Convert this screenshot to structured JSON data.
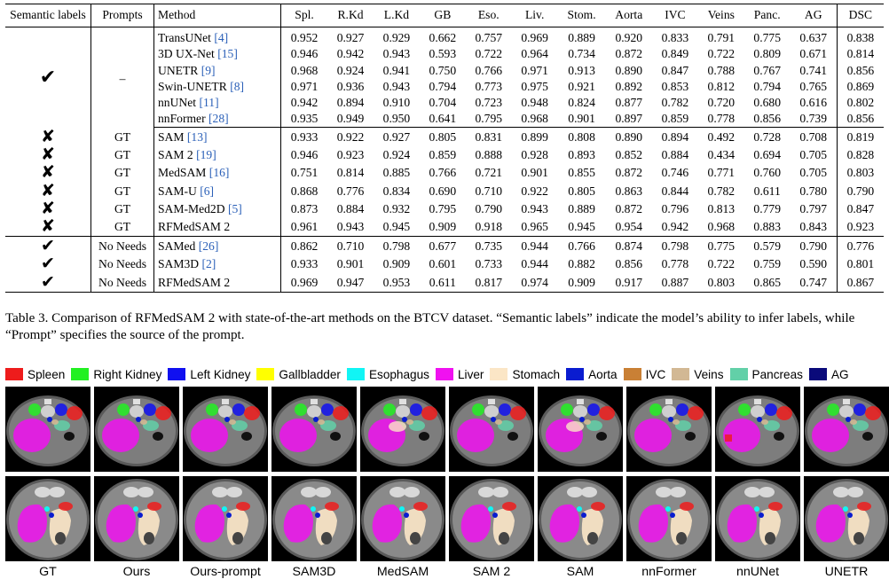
{
  "table": {
    "headers": [
      "Semantic labels",
      "Prompts",
      "Method",
      "Spl.",
      "R.Kd",
      "L.Kd",
      "GB",
      "Eso.",
      "Liv.",
      "Stom.",
      "Aorta",
      "IVC",
      "Veins",
      "Panc.",
      "AG",
      "DSC"
    ],
    "groups": [
      {
        "semantic": "✔",
        "prompt": "–",
        "rows": [
          {
            "method": "TransUNet",
            "ref": "[4]",
            "values": [
              "0.952",
              "0.927",
              "0.929",
              "0.662",
              "0.757",
              "0.969",
              "0.889",
              "0.920",
              "0.833",
              "0.791",
              "0.775",
              "0.637"
            ],
            "dsc": "0.838"
          },
          {
            "method": "3D UX-Net",
            "ref": "[15]",
            "values": [
              "0.946",
              "0.942",
              "0.943",
              "0.593",
              "0.722",
              "0.964",
              "0.734",
              "0.872",
              "0.849",
              "0.722",
              "0.809",
              "0.671"
            ],
            "dsc": "0.814"
          },
          {
            "method": "UNETR",
            "ref": "[9]",
            "values": [
              "0.968",
              "0.924",
              "0.941",
              "0.750",
              "0.766",
              "0.971",
              "0.913",
              "0.890",
              "0.847",
              "0.788",
              "0.767",
              "0.741"
            ],
            "dsc": "0.856"
          },
          {
            "method": "Swin-UNETR",
            "ref": "[8]",
            "values": [
              "0.971",
              "0.936",
              "0.943",
              "0.794",
              "0.773",
              "0.975",
              "0.921",
              "0.892",
              "0.853",
              "0.812",
              "0.794",
              "0.765"
            ],
            "dsc": "0.869"
          },
          {
            "method": "nnUNet",
            "ref": "[11]",
            "values": [
              "0.942",
              "0.894",
              "0.910",
              "0.704",
              "0.723",
              "0.948",
              "0.824",
              "0.877",
              "0.782",
              "0.720",
              "0.680",
              "0.616"
            ],
            "dsc": "0.802"
          },
          {
            "method": "nnFormer",
            "ref": "[28]",
            "values": [
              "0.935",
              "0.949",
              "0.950",
              "0.641",
              "0.795",
              "0.968",
              "0.901",
              "0.897",
              "0.859",
              "0.778",
              "0.856",
              "0.739"
            ],
            "dsc": "0.856"
          }
        ]
      },
      {
        "rows": [
          {
            "semantic": "✘",
            "prompt": "GT",
            "method": "SAM",
            "ref": "[13]",
            "values": [
              "0.933",
              "0.922",
              "0.927",
              "0.805",
              "0.831",
              "0.899",
              "0.808",
              "0.890",
              "0.894",
              "0.492",
              "0.728",
              "0.708"
            ],
            "dsc": "0.819"
          },
          {
            "semantic": "✘",
            "prompt": "GT",
            "method": "SAM 2",
            "ref": "[19]",
            "values": [
              "0.946",
              "0.923",
              "0.924",
              "0.859",
              "0.888",
              "0.928",
              "0.893",
              "0.852",
              "0.884",
              "0.434",
              "0.694",
              "0.705"
            ],
            "dsc": "0.828"
          },
          {
            "semantic": "✘",
            "prompt": "GT",
            "method": "MedSAM",
            "ref": "[16]",
            "values": [
              "0.751",
              "0.814",
              "0.885",
              "0.766",
              "0.721",
              "0.901",
              "0.855",
              "0.872",
              "0.746",
              "0.771",
              "0.760",
              "0.705"
            ],
            "dsc": "0.803"
          },
          {
            "semantic": "✘",
            "prompt": "GT",
            "method": "SAM-U",
            "ref": "[6]",
            "values": [
              "0.868",
              "0.776",
              "0.834",
              "0.690",
              "0.710",
              "0.922",
              "0.805",
              "0.863",
              "0.844",
              "0.782",
              "0.611",
              "0.780"
            ],
            "dsc": "0.790"
          },
          {
            "semantic": "✘",
            "prompt": "GT",
            "method": "SAM-Med2D",
            "ref": "[5]",
            "values": [
              "0.873",
              "0.884",
              "0.932",
              "0.795",
              "0.790",
              "0.943",
              "0.889",
              "0.872",
              "0.796",
              "0.813",
              "0.779",
              "0.797"
            ],
            "dsc": "0.847"
          },
          {
            "semantic": "✘",
            "prompt": "GT",
            "method": "RFMedSAM 2",
            "ref": "",
            "values": [
              "0.961",
              "0.943",
              "0.945",
              "0.909",
              "0.918",
              "0.965",
              "0.945",
              "0.954",
              "0.942",
              "0.968",
              "0.883",
              "0.843"
            ],
            "dsc": "0.923"
          }
        ]
      },
      {
        "rows": [
          {
            "semantic": "✔",
            "prompt": "No Needs",
            "method": "SAMed",
            "ref": "[26]",
            "values": [
              "0.862",
              "0.710",
              "0.798",
              "0.677",
              "0.735",
              "0.944",
              "0.766",
              "0.874",
              "0.798",
              "0.775",
              "0.579",
              "0.790"
            ],
            "dsc": "0.776"
          },
          {
            "semantic": "✔",
            "prompt": "No Needs",
            "method": "SAM3D",
            "ref": "[2]",
            "values": [
              "0.933",
              "0.901",
              "0.909",
              "0.601",
              "0.733",
              "0.944",
              "0.882",
              "0.856",
              "0.778",
              "0.722",
              "0.759",
              "0.590"
            ],
            "dsc": "0.801"
          },
          {
            "semantic": "✔",
            "prompt": "No Needs",
            "method": "RFMedSAM 2",
            "ref": "",
            "values": [
              "0.969",
              "0.947",
              "0.953",
              "0.611",
              "0.817",
              "0.974",
              "0.909",
              "0.917",
              "0.887",
              "0.803",
              "0.865",
              "0.747"
            ],
            "dsc": "0.867"
          }
        ]
      }
    ]
  },
  "caption": "Table 3. Comparison of RFMedSAM 2 with state-of-the-art methods on the BTCV dataset. “Semantic labels” indicate the model’s ability to infer labels, while “Prompt” specifies the source of the prompt.",
  "legend": [
    {
      "label": "Spleen",
      "color": "#ee1c1c"
    },
    {
      "label": "Right Kidney",
      "color": "#22f022"
    },
    {
      "label": "Left Kidney",
      "color": "#1010f0"
    },
    {
      "label": "Gallbladder",
      "color": "#ffff00"
    },
    {
      "label": "Esophagus",
      "color": "#11f5f5"
    },
    {
      "label": "Liver",
      "color": "#f011f0"
    },
    {
      "label": "Stomach",
      "color": "#fbe6c6"
    },
    {
      "label": "Aorta",
      "color": "#0a1cd0"
    },
    {
      "label": "IVC",
      "color": "#c98035"
    },
    {
      "label": "Veins",
      "color": "#d2b894"
    },
    {
      "label": "Pancreas",
      "color": "#62d0a8"
    },
    {
      "label": "AG",
      "color": "#0a0a7a"
    }
  ],
  "columns": [
    "GT",
    "Ours",
    "Ours-prompt",
    "SAM3D",
    "MedSAM",
    "SAM 2",
    "SAM",
    "nnFormer",
    "nnUNet",
    "UNETR"
  ]
}
